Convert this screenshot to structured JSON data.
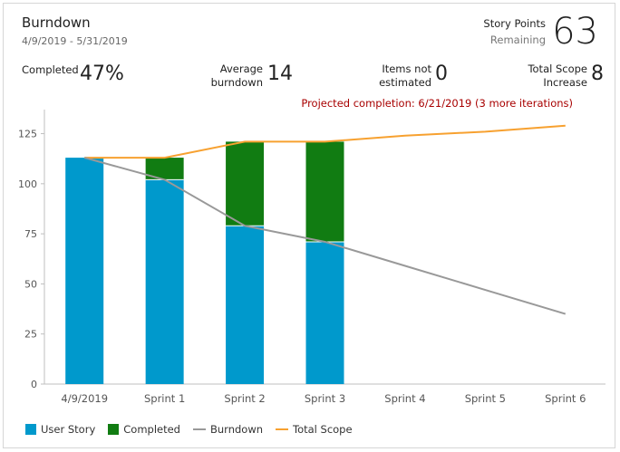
{
  "header": {
    "title": "Burndown",
    "date_range": "4/9/2019 - 5/31/2019",
    "story_points_label": "Story Points",
    "story_points_sub": "Remaining",
    "story_points_value": "63"
  },
  "metrics": {
    "completed_label": "Completed",
    "completed_value": "47%",
    "avg_label_1": "Average",
    "avg_label_2": "burndown",
    "avg_value": "14",
    "notest_label_1": "Items not",
    "notest_label_2": "estimated",
    "notest_value": "0",
    "scope_label_1": "Total Scope",
    "scope_label_2": "Increase",
    "scope_value": "8"
  },
  "projection": "Projected completion: 6/21/2019 (3 more iterations)",
  "colors": {
    "user_story": "#0099cc",
    "completed": "#117c12",
    "burndown": "#999999",
    "total_scope": "#f7a130",
    "projection_text": "#a80000"
  },
  "legend": {
    "user_story": "User Story",
    "completed": "Completed",
    "burndown": "Burndown",
    "total_scope": "Total Scope"
  },
  "chart_data": {
    "type": "bar",
    "stacked": true,
    "categories": [
      "4/9/2019",
      "Sprint 1",
      "Sprint 2",
      "Sprint 3",
      "Sprint 4",
      "Sprint 5",
      "Sprint 6"
    ],
    "ylim": [
      0,
      137
    ],
    "yticks": [
      0,
      25,
      50,
      75,
      100,
      125
    ],
    "grid": false,
    "legend_position": "bottom-left",
    "series": [
      {
        "name": "User Story",
        "type": "bar",
        "values": [
          113,
          102,
          79,
          71,
          null,
          null,
          null
        ]
      },
      {
        "name": "Completed",
        "type": "bar",
        "values": [
          0,
          11,
          42,
          50,
          null,
          null,
          null
        ]
      },
      {
        "name": "Burndown",
        "type": "line",
        "values": [
          113,
          102,
          79,
          71,
          59,
          47,
          35
        ]
      },
      {
        "name": "Total Scope",
        "type": "line",
        "values": [
          113,
          113,
          121,
          121,
          124,
          126,
          129
        ]
      }
    ]
  }
}
